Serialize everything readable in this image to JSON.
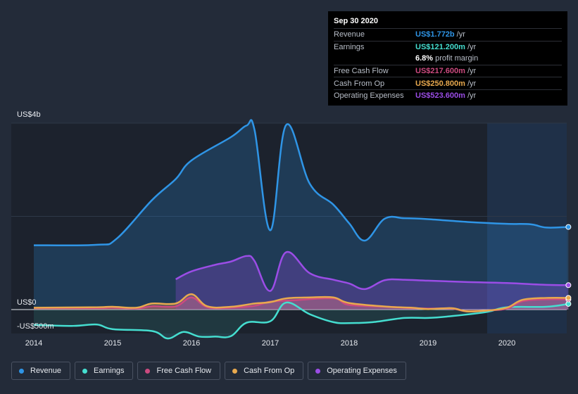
{
  "chart_data": {
    "type": "area",
    "title": "",
    "y_unit_label_top": "US$4b",
    "y_unit_label_zero": "US$0",
    "y_unit_label_bottom": "-US$500m",
    "ylim": [
      -600,
      4000
    ],
    "xlim": [
      2013.8,
      2020.78
    ],
    "x_ticks": [
      "2014",
      "2015",
      "2016",
      "2017",
      "2018",
      "2019",
      "2020"
    ],
    "forecast_start": 2019.75,
    "series": [
      {
        "name": "Revenue",
        "color": "#2f95e6",
        "x": [
          2014.0,
          2014.8,
          2015.05,
          2015.5,
          2015.8,
          2016.0,
          2016.5,
          2016.7,
          2016.8,
          2017.0,
          2017.2,
          2017.5,
          2017.8,
          2018.0,
          2018.2,
          2018.45,
          2018.7,
          2019.0,
          2019.5,
          2020.0,
          2020.3,
          2020.5,
          2020.78
        ],
        "values": [
          1380,
          1390,
          1520,
          2350,
          2800,
          3200,
          3700,
          3950,
          3850,
          1700,
          3960,
          2700,
          2250,
          1850,
          1480,
          1950,
          1960,
          1940,
          1880,
          1840,
          1830,
          1760,
          1772
        ]
      },
      {
        "name": "Earnings",
        "color": "#45ded0",
        "x": [
          2014.0,
          2014.5,
          2014.8,
          2015.0,
          2015.5,
          2015.7,
          2015.9,
          2016.1,
          2016.3,
          2016.5,
          2016.7,
          2017.0,
          2017.2,
          2017.5,
          2017.8,
          2018.0,
          2018.3,
          2018.7,
          2019.0,
          2019.3,
          2019.75,
          2020.0,
          2020.5,
          2020.78
        ],
        "values": [
          -330,
          -350,
          -320,
          -420,
          -460,
          -620,
          -480,
          -580,
          -580,
          -570,
          -280,
          -250,
          150,
          -100,
          -270,
          -290,
          -270,
          -180,
          -180,
          -140,
          -50,
          50,
          60,
          121.2
        ]
      },
      {
        "name": "Free Cash Flow",
        "color": "#cc4a7f",
        "x": [
          2014.0,
          2014.8,
          2015.0,
          2015.3,
          2015.5,
          2015.8,
          2016.0,
          2016.2,
          2016.5,
          2016.8,
          2017.0,
          2017.3,
          2017.8,
          2018.0,
          2018.5,
          2018.8,
          2019.0,
          2019.3,
          2019.5,
          2019.75,
          2020.0,
          2020.2,
          2020.5,
          2020.78
        ],
        "values": [
          30,
          30,
          40,
          20,
          70,
          70,
          260,
          50,
          40,
          80,
          170,
          200,
          240,
          100,
          60,
          30,
          20,
          20,
          -40,
          -20,
          20,
          180,
          220,
          217.6
        ]
      },
      {
        "name": "Cash From Op",
        "color": "#e8a94e",
        "x": [
          2014.0,
          2014.8,
          2015.0,
          2015.3,
          2015.5,
          2015.8,
          2016.0,
          2016.2,
          2016.5,
          2016.8,
          2017.0,
          2017.2,
          2017.5,
          2017.8,
          2018.0,
          2018.5,
          2018.8,
          2019.0,
          2019.3,
          2019.5,
          2019.75,
          2020.0,
          2020.2,
          2020.5,
          2020.78
        ],
        "values": [
          40,
          50,
          60,
          40,
          130,
          130,
          330,
          70,
          60,
          130,
          160,
          240,
          260,
          260,
          140,
          60,
          40,
          10,
          30,
          -40,
          -20,
          40,
          210,
          250,
          250.8
        ]
      },
      {
        "name": "Operating Expenses",
        "color": "#9b4de6",
        "x": [
          2015.8,
          2016.0,
          2016.3,
          2016.5,
          2016.7,
          2016.8,
          2017.0,
          2017.2,
          2017.5,
          2017.8,
          2018.0,
          2018.2,
          2018.45,
          2018.7,
          2019.0,
          2019.5,
          2020.0,
          2020.5,
          2020.78
        ],
        "values": [
          650,
          820,
          960,
          1030,
          1150,
          1040,
          400,
          1230,
          780,
          640,
          560,
          440,
          630,
          640,
          620,
          590,
          570,
          530,
          523.6
        ]
      }
    ]
  },
  "tooltip": {
    "date": "Sep 30 2020",
    "rows": [
      {
        "label": "Revenue",
        "value": "US$1.772b",
        "unit": "/yr",
        "color": "#2f95e6"
      },
      {
        "label": "Earnings",
        "value": "US$121.200m",
        "unit": "/yr",
        "color": "#45ded0"
      },
      {
        "label": "",
        "value": "6.8%",
        "unit": "profit margin",
        "color": "#ffffff"
      },
      {
        "label": "Free Cash Flow",
        "value": "US$217.600m",
        "unit": "/yr",
        "color": "#cc4a7f"
      },
      {
        "label": "Cash From Op",
        "value": "US$250.800m",
        "unit": "/yr",
        "color": "#e8a94e"
      },
      {
        "label": "Operating Expenses",
        "value": "US$523.600m",
        "unit": "/yr",
        "color": "#9b4de6"
      }
    ]
  },
  "legend": {
    "items": [
      {
        "label": "Revenue",
        "color": "#2f95e6"
      },
      {
        "label": "Earnings",
        "color": "#45ded0"
      },
      {
        "label": "Free Cash Flow",
        "color": "#cc4a7f"
      },
      {
        "label": "Cash From Op",
        "color": "#e8a94e"
      },
      {
        "label": "Operating Expenses",
        "color": "#9b4de6"
      }
    ]
  }
}
